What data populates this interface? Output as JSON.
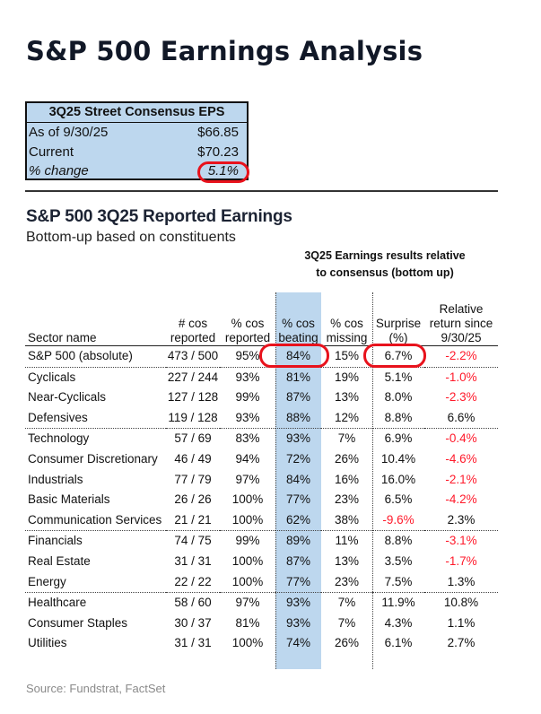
{
  "title": "S&P 500 Earnings Analysis",
  "eps_box": {
    "title": "3Q25 Street Consensus EPS",
    "rows": [
      {
        "label": "As of 9/30/25",
        "value": "$66.85"
      },
      {
        "label": "Current",
        "value": "$70.23"
      },
      {
        "label": "% change",
        "value": "5.1%"
      }
    ]
  },
  "section": {
    "title": "S&P 500 3Q25 Reported Earnings",
    "caption": "Bottom-up based on constituents",
    "group_header_line1": "3Q25 Earnings results relative",
    "group_header_line2": "to consensus (bottom up)"
  },
  "table": {
    "columns": [
      {
        "line1": "",
        "line2": "",
        "line3": "Sector name"
      },
      {
        "line1": "",
        "line2": "# cos",
        "line3": "reported"
      },
      {
        "line1": "",
        "line2": "% cos",
        "line3": "reported"
      },
      {
        "line1": "",
        "line2": "% cos",
        "line3": "beating"
      },
      {
        "line1": "",
        "line2": "% cos",
        "line3": "missing"
      },
      {
        "line1": "",
        "line2": "Surprise",
        "line3": "(%)"
      },
      {
        "line1": "Relative",
        "line2": "return since",
        "line3": "9/30/25"
      }
    ],
    "rows": [
      {
        "sector": "S&P 500 (absolute)",
        "reported": "473 / 500",
        "pct_reported": "95%",
        "pct_beating": "84%",
        "pct_missing": "15%",
        "surprise": "6.7%",
        "rel_return": "-2.2%"
      },
      {
        "sector": "Cyclicals",
        "reported": "227 / 244",
        "pct_reported": "93%",
        "pct_beating": "81%",
        "pct_missing": "19%",
        "surprise": "5.1%",
        "rel_return": "-1.0%"
      },
      {
        "sector": "Near-Cyclicals",
        "reported": "127 / 128",
        "pct_reported": "99%",
        "pct_beating": "87%",
        "pct_missing": "13%",
        "surprise": "8.0%",
        "rel_return": "-2.3%"
      },
      {
        "sector": "Defensives",
        "reported": "119 / 128",
        "pct_reported": "93%",
        "pct_beating": "88%",
        "pct_missing": "12%",
        "surprise": "8.8%",
        "rel_return": "6.6%"
      },
      {
        "sector": "Technology",
        "reported": "57 / 69",
        "pct_reported": "83%",
        "pct_beating": "93%",
        "pct_missing": "7%",
        "surprise": "6.9%",
        "rel_return": "-0.4%"
      },
      {
        "sector": "Consumer Discretionary",
        "reported": "46 / 49",
        "pct_reported": "94%",
        "pct_beating": "72%",
        "pct_missing": "26%",
        "surprise": "10.4%",
        "rel_return": "-4.6%"
      },
      {
        "sector": "Industrials",
        "reported": "77 / 79",
        "pct_reported": "97%",
        "pct_beating": "84%",
        "pct_missing": "16%",
        "surprise": "16.0%",
        "rel_return": "-2.1%"
      },
      {
        "sector": "Basic Materials",
        "reported": "26 / 26",
        "pct_reported": "100%",
        "pct_beating": "77%",
        "pct_missing": "23%",
        "surprise": "6.5%",
        "rel_return": "-4.2%"
      },
      {
        "sector": "Communication Services",
        "reported": "21 / 21",
        "pct_reported": "100%",
        "pct_beating": "62%",
        "pct_missing": "38%",
        "surprise": "-9.6%",
        "rel_return": "2.3%"
      },
      {
        "sector": "Financials",
        "reported": "74 / 75",
        "pct_reported": "99%",
        "pct_beating": "89%",
        "pct_missing": "11%",
        "surprise": "8.8%",
        "rel_return": "-3.1%"
      },
      {
        "sector": "Real Estate",
        "reported": "31 / 31",
        "pct_reported": "100%",
        "pct_beating": "87%",
        "pct_missing": "13%",
        "surprise": "3.5%",
        "rel_return": "-1.7%"
      },
      {
        "sector": "Energy",
        "reported": "22 / 22",
        "pct_reported": "100%",
        "pct_beating": "77%",
        "pct_missing": "23%",
        "surprise": "7.5%",
        "rel_return": "1.3%"
      },
      {
        "sector": "Healthcare",
        "reported": "58 / 60",
        "pct_reported": "97%",
        "pct_beating": "93%",
        "pct_missing": "7%",
        "surprise": "11.9%",
        "rel_return": "10.8%"
      },
      {
        "sector": "Consumer Staples",
        "reported": "30 / 37",
        "pct_reported": "81%",
        "pct_beating": "93%",
        "pct_missing": "7%",
        "surprise": "4.3%",
        "rel_return": "1.1%"
      },
      {
        "sector": "Utilities",
        "reported": "31 / 31",
        "pct_reported": "100%",
        "pct_beating": "74%",
        "pct_missing": "26%",
        "surprise": "6.1%",
        "rel_return": "2.7%"
      }
    ],
    "highlighted_cells": [
      "S&P 500 (absolute).pct_beating",
      "S&P 500 (absolute).surprise",
      "eps_box.% change"
    ]
  },
  "colors": {
    "highlight_fill": "#bdd7ee",
    "negative": "#ff1a2b",
    "annotation_ring": "#e8121c"
  },
  "source": "Source: Fundstrat, FactSet"
}
